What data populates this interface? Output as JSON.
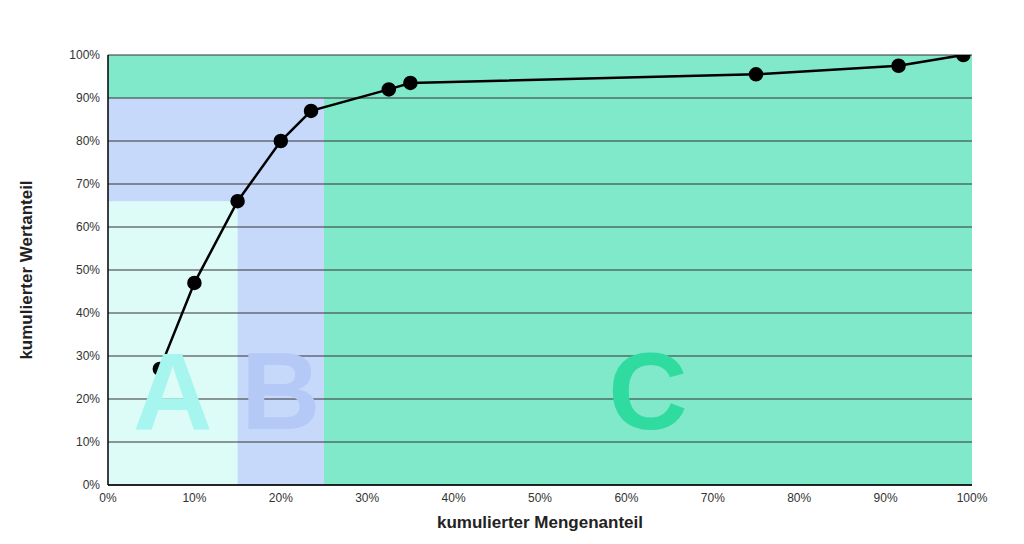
{
  "chart_data": {
    "type": "line",
    "x_label": "kumulierter Mengenanteil",
    "y_label": "kumulierter Wertanteil",
    "x": [
      6,
      10,
      15,
      20,
      23.5,
      32.5,
      35,
      75,
      91.5,
      99
    ],
    "values": [
      27,
      47,
      66,
      80,
      87,
      92,
      93.5,
      95.5,
      97.5,
      100
    ],
    "color": "#000000",
    "marker": "circle",
    "xlim": [
      0,
      100
    ],
    "ylim": [
      0,
      100
    ],
    "xticks": [
      {
        "value": 0,
        "label": "0%"
      },
      {
        "value": 10,
        "label": "10%"
      },
      {
        "value": 20,
        "label": "20%"
      },
      {
        "value": 30,
        "label": "30%"
      },
      {
        "value": 40,
        "label": "40%"
      },
      {
        "value": 50,
        "label": "50%"
      },
      {
        "value": 60,
        "label": "60%"
      },
      {
        "value": 70,
        "label": "70%"
      },
      {
        "value": 80,
        "label": "80%"
      },
      {
        "value": 90,
        "label": "90%"
      },
      {
        "value": 100,
        "label": "100%"
      }
    ],
    "yticks": [
      {
        "value": 0,
        "label": "0%"
      },
      {
        "value": 10,
        "label": "10%"
      },
      {
        "value": 20,
        "label": "20%"
      },
      {
        "value": 30,
        "label": "30%"
      },
      {
        "value": 40,
        "label": "40%"
      },
      {
        "value": 50,
        "label": "50%"
      },
      {
        "value": 60,
        "label": "60%"
      },
      {
        "value": 70,
        "label": "70%"
      },
      {
        "value": 80,
        "label": "80%"
      },
      {
        "value": 90,
        "label": "90%"
      },
      {
        "value": 100,
        "label": "100%"
      }
    ],
    "grid": true,
    "regions": [
      {
        "label": "C",
        "x": [
          0,
          100
        ],
        "y": [
          0,
          100
        ],
        "color": "#80e9c9"
      },
      {
        "label": "B",
        "x": [
          0,
          25
        ],
        "y": [
          0,
          90
        ],
        "color": "#c6d9fb"
      },
      {
        "label": "A",
        "x": [
          0,
          15
        ],
        "y": [
          0,
          66
        ],
        "color": "#defcf7"
      }
    ]
  }
}
